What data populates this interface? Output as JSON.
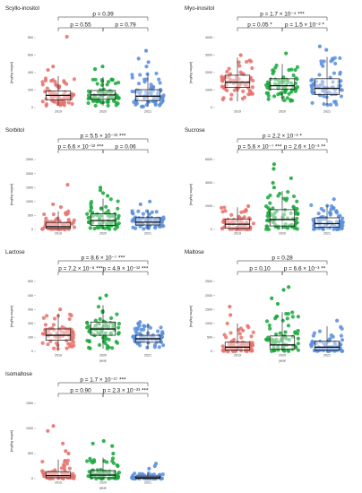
{
  "figure": {
    "xlabel": "year",
    "ylabel": "[mg/kg sugar]"
  },
  "colors": {
    "2019": "#e8716c",
    "2020": "#1aa83c",
    "2021": "#5b8ede",
    "box": "#111111"
  },
  "chart_data": [
    {
      "type": "boxplot",
      "title": "Scyllo-inositol",
      "categories": [
        "2019",
        "2020",
        "2021"
      ],
      "ylim": [
        0,
        800
      ],
      "yticks": [
        0,
        200,
        400,
        600,
        800
      ],
      "box_stats": [
        {
          "q1": 90,
          "median": 140,
          "q3": 190,
          "lo": 20,
          "hi": 360
        },
        {
          "q1": 95,
          "median": 145,
          "q3": 195,
          "lo": 20,
          "hi": 350
        },
        {
          "q1": 80,
          "median": 130,
          "q3": 205,
          "lo": 10,
          "hi": 390
        }
      ],
      "outliers": [
        [
          810,
          470,
          430
        ],
        [
          470,
          440
        ],
        [
          650,
          560,
          520,
          470
        ]
      ],
      "comparisons": [
        {
          "from": 0,
          "to": 2,
          "label": "p = 0.39"
        },
        {
          "from": 0,
          "to": 1,
          "label": "p = 0.55"
        },
        {
          "from": 1,
          "to": 2,
          "label": "p = 0.79"
        }
      ]
    },
    {
      "type": "boxplot",
      "title": "Myo-inositol",
      "categories": [
        "2019",
        "2020",
        "2021"
      ],
      "ylim": [
        0,
        4000
      ],
      "yticks": [
        0,
        1000,
        2000,
        3000,
        4000
      ],
      "box_stats": [
        {
          "q1": 1150,
          "median": 1450,
          "q3": 1850,
          "lo": 350,
          "hi": 2850
        },
        {
          "q1": 1050,
          "median": 1250,
          "q3": 1650,
          "lo": 350,
          "hi": 2500
        },
        {
          "q1": 750,
          "median": 1100,
          "q3": 1650,
          "lo": 150,
          "hi": 2900
        }
      ],
      "outliers": [
        [
          3000
        ],
        [
          3100
        ],
        [
          3500,
          3300
        ]
      ],
      "comparisons": [
        {
          "from": 0,
          "to": 2,
          "label": "p = 1.7 × 10⁻⁴ ***"
        },
        {
          "from": 0,
          "to": 1,
          "label": "p = 0.05 *"
        },
        {
          "from": 1,
          "to": 2,
          "label": "p = 1.5 × 10⁻² *"
        }
      ]
    },
    {
      "type": "boxplot",
      "title": "Sorbitol",
      "categories": [
        "2019",
        "2020",
        "2021"
      ],
      "ylim": [
        0,
        2500
      ],
      "yticks": [
        0,
        500,
        1000,
        1500,
        2000,
        2500
      ],
      "box_stats": [
        {
          "q1": 40,
          "median": 100,
          "q3": 250,
          "lo": 0,
          "hi": 650
        },
        {
          "q1": 150,
          "median": 320,
          "q3": 560,
          "lo": 0,
          "hi": 1100
        },
        {
          "q1": 160,
          "median": 260,
          "q3": 420,
          "lo": 20,
          "hi": 700
        }
      ],
      "outliers": [
        [
          1600,
          900,
          800
        ],
        [
          1500,
          1400,
          1300,
          1200
        ],
        [
          1000,
          900
        ]
      ],
      "comparisons": [
        {
          "from": 0,
          "to": 2,
          "label": "p = 5.5 × 10⁻¹² ***"
        },
        {
          "from": 0,
          "to": 1,
          "label": "p = 6.6 × 10⁻¹² ***"
        },
        {
          "from": 1,
          "to": 2,
          "label": "p = 0.06"
        }
      ]
    },
    {
      "type": "boxplot",
      "title": "Sucrose",
      "categories": [
        "2019",
        "2020",
        "2021"
      ],
      "ylim": [
        0,
        6000
      ],
      "yticks": [
        0,
        2000,
        4000,
        6000
      ],
      "box_stats": [
        {
          "q1": 100,
          "median": 450,
          "q3": 900,
          "lo": 0,
          "hi": 1900
        },
        {
          "q1": 300,
          "median": 850,
          "q3": 1700,
          "lo": 0,
          "hi": 3300
        },
        {
          "q1": 200,
          "median": 500,
          "q3": 1000,
          "lo": 0,
          "hi": 2100
        }
      ],
      "outliers": [
        [
          2000
        ],
        [
          5600,
          5200,
          4400,
          4000,
          3600
        ],
        [
          2600
        ]
      ],
      "comparisons": [
        {
          "from": 0,
          "to": 2,
          "label": "p = 2.2 × 10⁻² *"
        },
        {
          "from": 0,
          "to": 1,
          "label": "p = 5.6 × 10⁻⁷ ***"
        },
        {
          "from": 1,
          "to": 2,
          "label": "p = 2.6 × 10⁻³ **"
        }
      ]
    },
    {
      "type": "boxplot",
      "title": "Lactose",
      "categories": [
        "2019",
        "2020",
        "2021"
      ],
      "ylim": [
        0,
        500
      ],
      "yticks": [
        0,
        100,
        200,
        300,
        400,
        500
      ],
      "box_stats": [
        {
          "q1": 80,
          "median": 115,
          "q3": 160,
          "lo": 10,
          "hi": 270
        },
        {
          "q1": 115,
          "median": 160,
          "q3": 210,
          "lo": 20,
          "hi": 330
        },
        {
          "q1": 65,
          "median": 90,
          "q3": 115,
          "lo": 20,
          "hi": 200
        }
      ],
      "outliers": [
        [
          300
        ],
        [
          400,
          380
        ],
        [
          210
        ]
      ],
      "comparisons": [
        {
          "from": 0,
          "to": 2,
          "label": "p = 8.6 × 10⁻⁷ ***"
        },
        {
          "from": 0,
          "to": 1,
          "label": "p = 7.2 × 10⁻⁸ ***"
        },
        {
          "from": 1,
          "to": 2,
          "label": "p = 4.9 × 10⁻¹² ***"
        }
      ]
    },
    {
      "type": "boxplot",
      "title": "Maltose",
      "categories": [
        "2019",
        "2020",
        "2021"
      ],
      "ylim": [
        0,
        2500
      ],
      "yticks": [
        0,
        500,
        1000,
        1500,
        2000,
        2500
      ],
      "box_stats": [
        {
          "q1": 50,
          "median": 150,
          "q3": 330,
          "lo": 0,
          "hi": 1000
        },
        {
          "q1": 80,
          "median": 230,
          "q3": 550,
          "lo": 0,
          "hi": 1400
        },
        {
          "q1": 50,
          "median": 150,
          "q3": 360,
          "lo": 0,
          "hi": 900
        }
      ],
      "outliers": [
        [
          1600,
          1300
        ],
        [
          2300,
          2200,
          1900,
          1700
        ],
        [
          1100
        ]
      ],
      "comparisons": [
        {
          "from": 0,
          "to": 2,
          "label": "p = 0.28"
        },
        {
          "from": 0,
          "to": 1,
          "label": "p = 0.10"
        },
        {
          "from": 1,
          "to": 2,
          "label": "p = 6.6 × 10⁻³ **"
        }
      ]
    },
    {
      "type": "boxplot",
      "title": "Isomaltose",
      "categories": [
        "2019",
        "2020",
        "2021"
      ],
      "ylim": [
        0,
        1500
      ],
      "yticks": [
        0,
        500,
        1000,
        1500
      ],
      "box_stats": [
        {
          "q1": 20,
          "median": 60,
          "q3": 140,
          "lo": 0,
          "hi": 380
        },
        {
          "q1": 20,
          "median": 70,
          "q3": 160,
          "lo": 0,
          "hi": 420
        },
        {
          "q1": 5,
          "median": 20,
          "q3": 50,
          "lo": 0,
          "hi": 110
        }
      ],
      "outliers": [
        [
          1050,
          950,
          700,
          550,
          500
        ],
        [
          750,
          700,
          650,
          500
        ],
        [
          300,
          250,
          200
        ]
      ],
      "comparisons": [
        {
          "from": 0,
          "to": 2,
          "label": "p = 1.7 × 10⁻¹⁷ ***"
        },
        {
          "from": 0,
          "to": 1,
          "label": "p = 0.90"
        },
        {
          "from": 1,
          "to": 2,
          "label": "p = 2.3 × 10⁻²³ ***"
        }
      ]
    }
  ]
}
